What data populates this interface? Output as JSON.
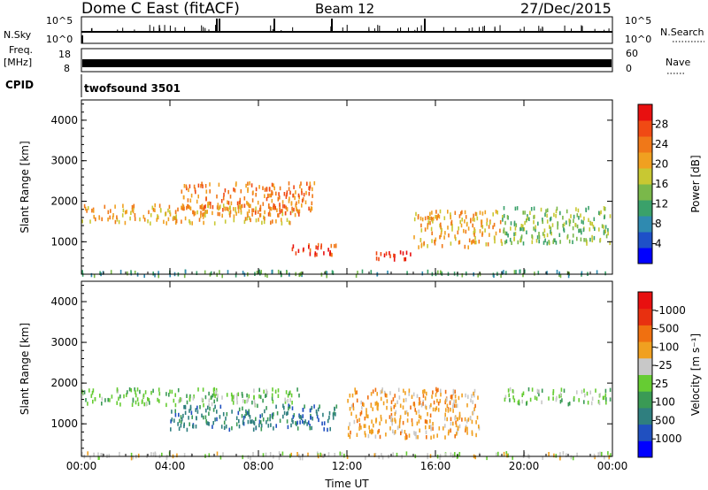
{
  "header": {
    "station": "Dome C East (fitACF)",
    "beam": "Beam 12",
    "date": "27/Dec/2015"
  },
  "strips": {
    "nsky_label": "N.Sky",
    "nsky_ticks": [
      "10^5",
      "10^0"
    ],
    "nsearch_label": "N.Search",
    "nsearch_ticks": [
      "10^5",
      "10^0"
    ],
    "freq_label": "Freq.",
    "freq_unit": "[MHz]",
    "freq_ticks": [
      "18",
      "8"
    ],
    "nave_label": "Nave",
    "nave_ticks": [
      "60",
      "0"
    ],
    "cpid_label": "CPID",
    "cpid_value": "twofsound 3501"
  },
  "chart_data": [
    {
      "type": "heatmap",
      "name": "power",
      "ylabel": "Slant Range [km]",
      "y_ticks": [
        1000,
        2000,
        3000,
        4000
      ],
      "ylim": [
        200,
        4500
      ],
      "x_ticks": [
        "00:00",
        "04:00",
        "08:00",
        "12:00",
        "16:00",
        "20:00",
        "00:00"
      ],
      "xlim_hours": [
        0,
        24
      ],
      "colorbar": {
        "label": "Power [dB]",
        "ticks": [
          4,
          8,
          12,
          16,
          20,
          24,
          28
        ],
        "range": [
          0,
          30
        ],
        "colors": [
          "#0000ff",
          "#1e50c8",
          "#2f8ab0",
          "#3aa16a",
          "#7ab84a",
          "#c8c832",
          "#f0a020",
          "#f07818",
          "#f04a14",
          "#e81010"
        ]
      },
      "echo_regions": [
        {
          "t": [
            0.0,
            9.8
          ],
          "r": [
            1500,
            1950
          ],
          "level": 20
        },
        {
          "t": [
            4.5,
            10.5
          ],
          "r": [
            1700,
            2500
          ],
          "level": 22
        },
        {
          "t": [
            9.5,
            11.5
          ],
          "r": [
            700,
            1000
          ],
          "level": 26
        },
        {
          "t": [
            13.3,
            15.0
          ],
          "r": [
            600,
            800
          ],
          "level": 29
        },
        {
          "t": [
            15.0,
            19.0
          ],
          "r": [
            900,
            1800
          ],
          "level": 18
        },
        {
          "t": [
            19.0,
            23.9
          ],
          "r": [
            1000,
            1900
          ],
          "level": 14
        },
        {
          "t": [
            0.0,
            24.0
          ],
          "r": [
            200,
            320
          ],
          "level": 10
        }
      ]
    },
    {
      "type": "heatmap",
      "name": "velocity",
      "ylabel": "Slant Range [km]",
      "y_ticks": [
        1000,
        2000,
        3000,
        4000
      ],
      "ylim": [
        200,
        4500
      ],
      "x_ticks": [
        "00:00",
        "04:00",
        "08:00",
        "12:00",
        "16:00",
        "20:00",
        "00:00"
      ],
      "xlim_hours": [
        0,
        24
      ],
      "xlabel": "Time UT",
      "colorbar": {
        "label": "Velocity [m s⁻¹]",
        "ticks": [
          "1000",
          "500",
          "100",
          "25",
          "-25",
          "-100",
          "-500",
          "-1000"
        ],
        "colors": [
          "#0000ff",
          "#2050c0",
          "#2f7f7f",
          "#3a9a55",
          "#66cc33",
          "#c8c8c8",
          "#f0a020",
          "#f07010",
          "#e83010",
          "#e81010"
        ]
      },
      "echo_regions": [
        {
          "t": [
            0.0,
            10.0
          ],
          "r": [
            1500,
            1900
          ],
          "level": "-25"
        },
        {
          "t": [
            4.0,
            11.5
          ],
          "r": [
            900,
            1500
          ],
          "level": "-500"
        },
        {
          "t": [
            12.0,
            18.0
          ],
          "r": [
            700,
            1900
          ],
          "level": "100"
        },
        {
          "t": [
            19.0,
            23.9
          ],
          "r": [
            1500,
            1900
          ],
          "level": "-25"
        },
        {
          "t": [
            0.0,
            24.0
          ],
          "r": [
            200,
            330
          ],
          "level": "25"
        }
      ]
    }
  ]
}
